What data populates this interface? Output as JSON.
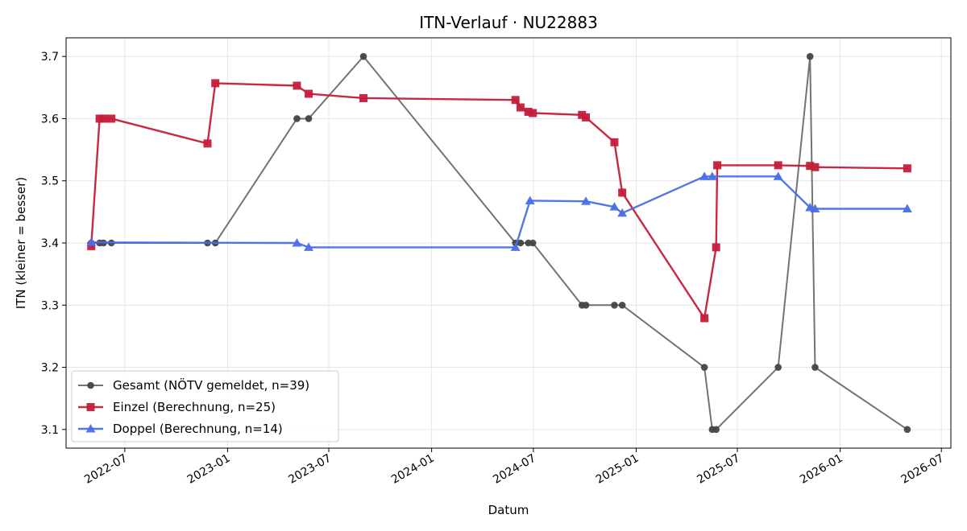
{
  "chart_data": {
    "type": "line",
    "title": "ITN-Verlauf · NU22883",
    "xlabel": "Datum",
    "ylabel": "ITN  (kleiner = besser)",
    "xlim": [
      "2022-03-18",
      "2026-07-18"
    ],
    "ylim": [
      3.07,
      3.73
    ],
    "x_ticks": [
      "2022-07",
      "2023-01",
      "2023-07",
      "2024-01",
      "2024-07",
      "2025-01",
      "2025-07",
      "2026-01",
      "2026-07"
    ],
    "y_ticks": [
      3.1,
      3.2,
      3.3,
      3.4,
      3.5,
      3.6,
      3.7
    ],
    "grid": true,
    "legend_position": "lower-left",
    "series": [
      {
        "name": "Gesamt (NÖTV gemeldet, n=39)",
        "color": "#444444",
        "marker": "circle",
        "points": [
          {
            "x": "2022-05-02",
            "y": 3.4
          },
          {
            "x": "2022-05-17",
            "y": 3.4
          },
          {
            "x": "2022-05-24",
            "y": 3.4
          },
          {
            "x": "2022-06-07",
            "y": 3.4
          },
          {
            "x": "2022-11-26",
            "y": 3.4
          },
          {
            "x": "2022-12-10",
            "y": 3.4
          },
          {
            "x": "2023-05-05",
            "y": 3.6
          },
          {
            "x": "2023-05-26",
            "y": 3.6
          },
          {
            "x": "2023-09-01",
            "y": 3.7
          },
          {
            "x": "2024-05-30",
            "y": 3.4
          },
          {
            "x": "2024-06-08",
            "y": 3.4
          },
          {
            "x": "2024-06-22",
            "y": 3.4
          },
          {
            "x": "2024-06-30",
            "y": 3.4
          },
          {
            "x": "2024-09-26",
            "y": 3.3
          },
          {
            "x": "2024-10-03",
            "y": 3.3
          },
          {
            "x": "2024-11-23",
            "y": 3.3
          },
          {
            "x": "2024-12-07",
            "y": 3.3
          },
          {
            "x": "2025-05-03",
            "y": 3.2
          },
          {
            "x": "2025-05-17",
            "y": 3.1
          },
          {
            "x": "2025-05-24",
            "y": 3.1
          },
          {
            "x": "2025-09-12",
            "y": 3.2
          },
          {
            "x": "2025-11-08",
            "y": 3.7
          },
          {
            "x": "2025-11-17",
            "y": 3.2
          },
          {
            "x": "2026-05-01",
            "y": 3.1
          }
        ]
      },
      {
        "name": "Einzel (Berechnung, n=25)",
        "color": "#c41e3a",
        "marker": "square",
        "points": [
          {
            "x": "2022-05-02",
            "y": 3.395
          },
          {
            "x": "2022-05-17",
            "y": 3.6
          },
          {
            "x": "2022-05-24",
            "y": 3.6
          },
          {
            "x": "2022-06-07",
            "y": 3.6
          },
          {
            "x": "2022-11-26",
            "y": 3.56
          },
          {
            "x": "2022-12-10",
            "y": 3.657
          },
          {
            "x": "2023-05-05",
            "y": 3.653
          },
          {
            "x": "2023-05-26",
            "y": 3.64
          },
          {
            "x": "2023-09-01",
            "y": 3.633
          },
          {
            "x": "2024-05-30",
            "y": 3.63
          },
          {
            "x": "2024-06-08",
            "y": 3.618
          },
          {
            "x": "2024-06-22",
            "y": 3.611
          },
          {
            "x": "2024-06-30",
            "y": 3.609
          },
          {
            "x": "2024-09-26",
            "y": 3.606
          },
          {
            "x": "2024-10-03",
            "y": 3.602
          },
          {
            "x": "2024-11-23",
            "y": 3.562
          },
          {
            "x": "2024-12-07",
            "y": 3.481
          },
          {
            "x": "2025-05-03",
            "y": 3.279
          },
          {
            "x": "2025-05-24",
            "y": 3.393
          },
          {
            "x": "2025-05-26",
            "y": 3.525
          },
          {
            "x": "2025-09-12",
            "y": 3.525
          },
          {
            "x": "2025-11-08",
            "y": 3.524
          },
          {
            "x": "2025-11-17",
            "y": 3.522
          },
          {
            "x": "2026-05-01",
            "y": 3.52
          }
        ]
      },
      {
        "name": "Doppel (Berechnung, n=14)",
        "color": "#4c6ee6",
        "marker": "triangle",
        "points": [
          {
            "x": "2022-05-02",
            "y": 3.401
          },
          {
            "x": "2023-05-05",
            "y": 3.4
          },
          {
            "x": "2023-05-26",
            "y": 3.393
          },
          {
            "x": "2024-05-30",
            "y": 3.393
          },
          {
            "x": "2024-06-25",
            "y": 3.468
          },
          {
            "x": "2024-10-03",
            "y": 3.467
          },
          {
            "x": "2024-11-23",
            "y": 3.458
          },
          {
            "x": "2024-12-07",
            "y": 3.448
          },
          {
            "x": "2025-05-03",
            "y": 3.507
          },
          {
            "x": "2025-05-17",
            "y": 3.507
          },
          {
            "x": "2025-09-12",
            "y": 3.507
          },
          {
            "x": "2025-11-08",
            "y": 3.457
          },
          {
            "x": "2025-11-17",
            "y": 3.455
          },
          {
            "x": "2026-05-01",
            "y": 3.455
          }
        ]
      }
    ]
  }
}
